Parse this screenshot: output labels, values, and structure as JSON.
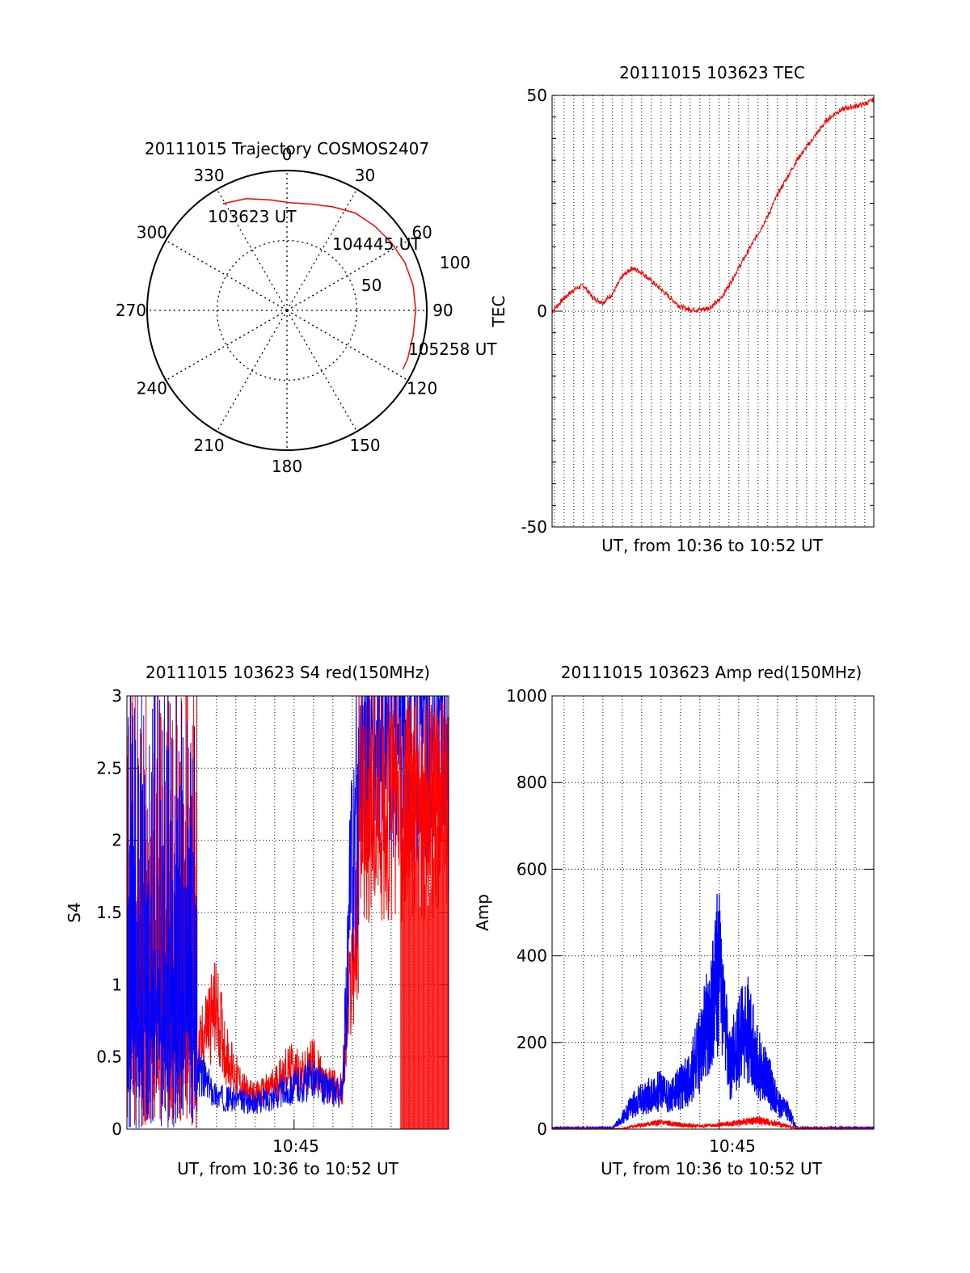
{
  "colors": {
    "red": "#ff0000",
    "blue": "#0000ff",
    "axis": "#000000",
    "grid": "#000000",
    "background": "#ffffff"
  },
  "chart_data": [
    {
      "id": "polar",
      "type": "scatter",
      "projection": "polar-skyplot",
      "title": "20111015 Trajectory COSMOS2407",
      "azimuth_labels": [
        "0",
        "30",
        "60",
        "90",
        "120",
        "150",
        "180",
        "210",
        "240",
        "270",
        "300",
        "330"
      ],
      "elevation_rings": [
        0,
        50,
        100
      ],
      "ring_labels": [
        "50",
        "100"
      ],
      "series": [
        {
          "color": "red",
          "points": [
            {
              "az": -31,
              "r": 89
            },
            {
              "az": -20,
              "r": 85
            },
            {
              "az": -9,
              "r": 80
            },
            {
              "az": 2,
              "r": 77
            },
            {
              "az": 13,
              "r": 78
            },
            {
              "az": 24,
              "r": 81
            },
            {
              "az": 35,
              "r": 85
            },
            {
              "az": 46,
              "r": 87
            },
            {
              "az": 57,
              "r": 89
            },
            {
              "az": 68,
              "r": 91
            },
            {
              "az": 79,
              "r": 92
            },
            {
              "az": 90,
              "r": 92
            },
            {
              "az": 101,
              "r": 92
            },
            {
              "az": 112,
              "r": 93
            },
            {
              "az": 117,
              "r": 93
            }
          ]
        }
      ],
      "annotations": [
        "103623 UT",
        "104445 UT",
        "105258 UT"
      ]
    },
    {
      "id": "tec",
      "type": "line",
      "title": "20111015 103623 TEC",
      "xlabel": "UT, from 10:36 to 10:52 UT",
      "ylabel": "TEC",
      "xlim": [
        "10:36:23",
        "10:52:58"
      ],
      "ylim": [
        -50,
        50
      ],
      "yticks": [
        "-50",
        "0",
        "50"
      ],
      "grid": "vertical dotted every 30 s",
      "series": [
        {
          "color": "red",
          "x": [
            "10:36:23",
            "10:37:00",
            "10:37:30",
            "10:38:00",
            "10:38:30",
            "10:39:00",
            "10:39:30",
            "10:40:00",
            "10:40:30",
            "10:41:00",
            "10:41:30",
            "10:42:00",
            "10:42:30",
            "10:43:00",
            "10:43:30",
            "10:44:00",
            "10:44:30",
            "10:45:00",
            "10:45:30",
            "10:46:00",
            "10:46:30",
            "10:47:00",
            "10:47:30",
            "10:48:00",
            "10:48:30",
            "10:49:00",
            "10:49:30",
            "10:50:00",
            "10:50:30",
            "10:51:00",
            "10:51:30",
            "10:52:00",
            "10:52:30",
            "10:52:58"
          ],
          "y": [
            0,
            3,
            5,
            6,
            3,
            2,
            4,
            8,
            10,
            9,
            7,
            5,
            3,
            1,
            0.4,
            0.3,
            0.8,
            2.5,
            6,
            10,
            14,
            18,
            22,
            27,
            31,
            35,
            38,
            41,
            44,
            46,
            47,
            47.5,
            48,
            49
          ]
        }
      ]
    },
    {
      "id": "s4",
      "type": "line",
      "title": "20111015 103623 S4 red(150MHz)",
      "xlabel": "UT, from 10:36 to 10:52 UT",
      "ylabel": "S4",
      "xlim": [
        "10:36:23",
        "10:52:58"
      ],
      "ylim": [
        0,
        3
      ],
      "yticks": [
        "0",
        "0.5",
        "1",
        "1.5",
        "2",
        "2.5",
        "3"
      ],
      "xticks": [
        "10:45"
      ],
      "grid": "dotted",
      "series": [
        {
          "color": "red",
          "x": [
            "10:40:00",
            "10:40:30",
            "10:41:00",
            "10:41:30",
            "10:42:00",
            "10:42:30",
            "10:43:00",
            "10:43:30",
            "10:44:00",
            "10:44:30",
            "10:45:00",
            "10:45:30",
            "10:46:00",
            "10:46:30",
            "10:47:00",
            "10:47:30",
            "10:48:00",
            "10:48:30"
          ],
          "y": [
            0.45,
            0.7,
            0.8,
            0.5,
            0.35,
            0.25,
            0.22,
            0.25,
            0.3,
            0.38,
            0.4,
            0.35,
            0.45,
            0.3,
            0.28,
            0.26,
            1.1,
            1.5
          ]
        },
        {
          "color": "blue",
          "x": [
            "10:40:00",
            "10:40:30",
            "10:41:00",
            "10:41:30",
            "10:42:00",
            "10:42:30",
            "10:43:00",
            "10:43:30",
            "10:44:00",
            "10:44:30",
            "10:45:00",
            "10:45:30",
            "10:46:00",
            "10:46:30",
            "10:47:00",
            "10:47:30",
            "10:48:00",
            "10:48:30"
          ],
          "y": [
            0.4,
            0.3,
            0.22,
            0.2,
            0.2,
            0.18,
            0.17,
            0.2,
            0.22,
            0.25,
            0.28,
            0.3,
            0.35,
            0.28,
            0.25,
            0.24,
            1.9,
            2.3
          ]
        }
      ]
    },
    {
      "id": "amp",
      "type": "line",
      "title": "20111015 103623 Amp red(150MHz)",
      "xlabel": "UT, from 10:36 to 10:52 UT",
      "ylabel": "Amp",
      "xlim": [
        "10:36:23",
        "10:52:58"
      ],
      "ylim": [
        0,
        1000
      ],
      "yticks": [
        "0",
        "200",
        "400",
        "600",
        "800",
        "1000"
      ],
      "xticks": [
        "10:45"
      ],
      "grid": "dotted",
      "series": [
        {
          "color": "blue",
          "x": [
            "10:36:23",
            "10:39:30",
            "10:40:00",
            "10:40:30",
            "10:41:00",
            "10:41:30",
            "10:42:00",
            "10:42:30",
            "10:43:00",
            "10:43:30",
            "10:44:00",
            "10:44:30",
            "10:45:00",
            "10:45:30",
            "10:46:00",
            "10:46:30",
            "10:47:00",
            "10:47:30",
            "10:48:00",
            "10:48:30",
            "10:49:00",
            "10:52:58"
          ],
          "y": [
            3,
            3,
            25,
            55,
            70,
            80,
            90,
            75,
            95,
            120,
            180,
            260,
            380,
            140,
            210,
            230,
            150,
            120,
            60,
            45,
            3,
            3
          ]
        },
        {
          "color": "red",
          "x": [
            "10:36:23",
            "10:40:00",
            "10:41:00",
            "10:42:00",
            "10:43:00",
            "10:44:00",
            "10:45:00",
            "10:46:00",
            "10:47:00",
            "10:48:00",
            "10:49:00",
            "10:52:58"
          ],
          "y": [
            1,
            1,
            10,
            15,
            10,
            7,
            10,
            15,
            20,
            12,
            2,
            1
          ]
        }
      ]
    }
  ]
}
